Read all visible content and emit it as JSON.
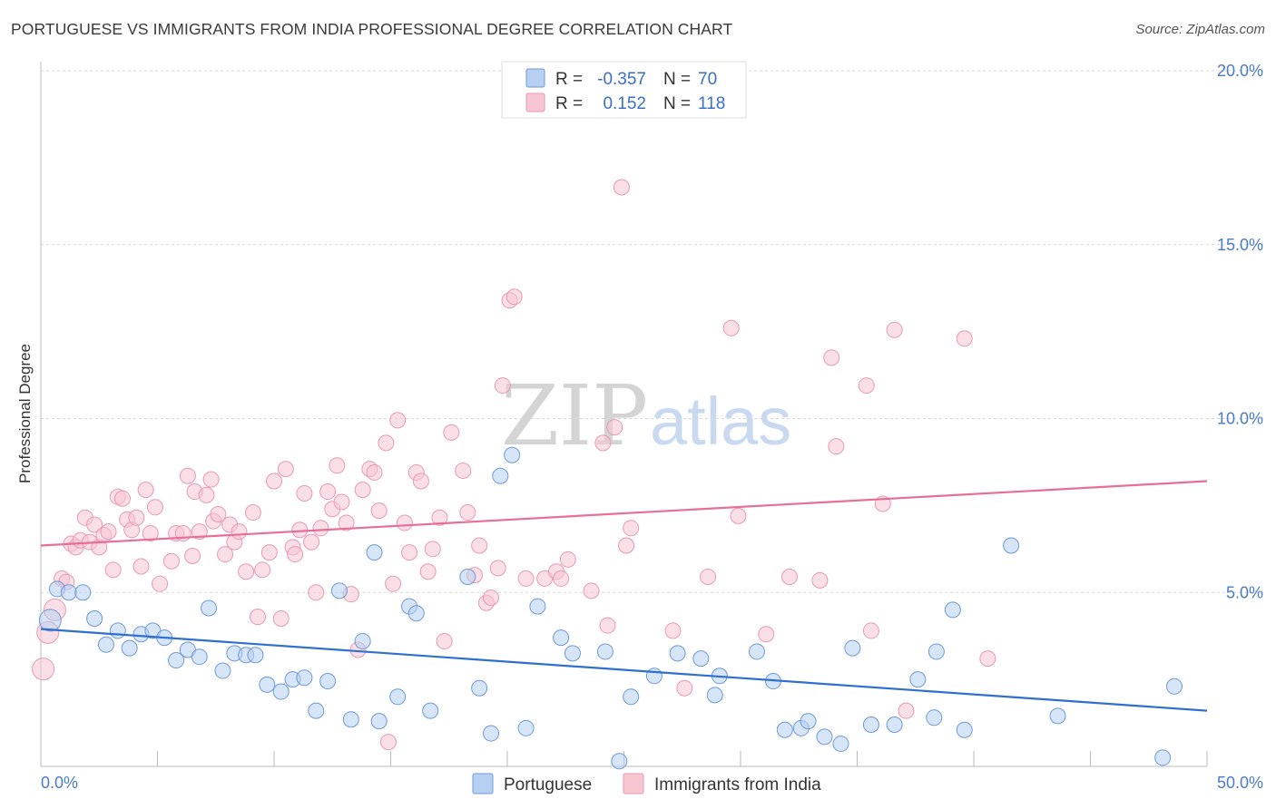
{
  "header": {
    "title": "PORTUGUESE VS IMMIGRANTS FROM INDIA PROFESSIONAL DEGREE CORRELATION CHART",
    "source": "Source: ZipAtlas.com"
  },
  "watermark": {
    "zip": "ZIP",
    "atlas": "atlas"
  },
  "legend": {
    "r_label": "R =",
    "n_label": "N =",
    "series1": {
      "r": "-0.357",
      "n": "70"
    },
    "series2": {
      "r": "0.152",
      "n": "118"
    }
  },
  "colors": {
    "portuguese_fill": "#b7d0f2",
    "portuguese_stroke": "#6f9ad8",
    "portuguese_line": "#2f6fcd",
    "india_fill": "#f8c5d3",
    "india_stroke": "#e89ab2",
    "india_line": "#e56f99",
    "axis_text": "#4a7cc7"
  },
  "chart_data": {
    "type": "scatter",
    "xlabel": "",
    "ylabel": "Professional Degree",
    "xlim": [
      0,
      50
    ],
    "ylim": [
      0,
      20
    ],
    "x_ticks": [
      "0.0%",
      "50.0%"
    ],
    "y_ticks": [
      {
        "value": 5,
        "label": "5.0%"
      },
      {
        "value": 10,
        "label": "10.0%"
      },
      {
        "value": 15,
        "label": "15.0%"
      },
      {
        "value": 20,
        "label": "20.0%"
      }
    ],
    "legend_position": "top-center",
    "grid": "horizontal-dashed",
    "series": [
      {
        "name": "Portuguese",
        "r": -0.357,
        "n": 70,
        "trend": [
          [
            0,
            3.95
          ],
          [
            50,
            1.6
          ]
        ],
        "points": [
          [
            0.4,
            4.2
          ],
          [
            0.7,
            5.1
          ],
          [
            1.2,
            5.0
          ],
          [
            1.8,
            5.0
          ],
          [
            2.3,
            4.25
          ],
          [
            2.8,
            3.5
          ],
          [
            3.3,
            3.9
          ],
          [
            3.8,
            3.4
          ],
          [
            4.3,
            3.8
          ],
          [
            4.8,
            3.9
          ],
          [
            5.3,
            3.7
          ],
          [
            5.8,
            3.05
          ],
          [
            6.3,
            3.35
          ],
          [
            6.8,
            3.15
          ],
          [
            7.2,
            4.55
          ],
          [
            7.8,
            2.75
          ],
          [
            8.3,
            3.25
          ],
          [
            8.8,
            3.2
          ],
          [
            9.2,
            3.2
          ],
          [
            9.7,
            2.35
          ],
          [
            10.3,
            2.15
          ],
          [
            10.8,
            2.5
          ],
          [
            11.3,
            2.55
          ],
          [
            11.8,
            1.6
          ],
          [
            12.3,
            2.45
          ],
          [
            12.8,
            5.05
          ],
          [
            13.3,
            1.35
          ],
          [
            13.8,
            3.6
          ],
          [
            14.3,
            6.15
          ],
          [
            14.5,
            1.3
          ],
          [
            15.3,
            2.0
          ],
          [
            15.8,
            4.6
          ],
          [
            16.1,
            4.4
          ],
          [
            16.7,
            1.6
          ],
          [
            18.3,
            5.45
          ],
          [
            18.8,
            2.25
          ],
          [
            19.3,
            0.95
          ],
          [
            19.7,
            8.35
          ],
          [
            20.2,
            8.95
          ],
          [
            20.8,
            1.1
          ],
          [
            21.3,
            4.6
          ],
          [
            22.3,
            3.7
          ],
          [
            22.8,
            3.25
          ],
          [
            24.2,
            3.3
          ],
          [
            24.8,
            0.15
          ],
          [
            25.3,
            2.0
          ],
          [
            26.3,
            2.6
          ],
          [
            27.3,
            3.25
          ],
          [
            28.3,
            3.1
          ],
          [
            28.9,
            2.05
          ],
          [
            29.1,
            2.6
          ],
          [
            30.7,
            3.3
          ],
          [
            31.4,
            2.45
          ],
          [
            31.9,
            1.05
          ],
          [
            32.6,
            1.1
          ],
          [
            32.9,
            1.3
          ],
          [
            33.6,
            0.85
          ],
          [
            34.3,
            0.65
          ],
          [
            34.8,
            3.4
          ],
          [
            35.6,
            1.2
          ],
          [
            36.6,
            1.2
          ],
          [
            37.6,
            2.5
          ],
          [
            38.3,
            1.4
          ],
          [
            38.4,
            3.3
          ],
          [
            39.1,
            4.5
          ],
          [
            39.6,
            1.05
          ],
          [
            41.6,
            6.35
          ],
          [
            43.6,
            1.45
          ],
          [
            48.1,
            0.25
          ],
          [
            48.6,
            2.3
          ]
        ]
      },
      {
        "name": "Immigrants from India",
        "r": 0.152,
        "n": 118,
        "trend": [
          [
            0,
            6.35
          ],
          [
            50,
            8.2
          ]
        ],
        "points": [
          [
            0.1,
            2.8
          ],
          [
            0.3,
            3.85
          ],
          [
            0.6,
            4.5
          ],
          [
            0.9,
            5.4
          ],
          [
            1.1,
            5.3
          ],
          [
            1.3,
            6.4
          ],
          [
            1.5,
            6.3
          ],
          [
            1.7,
            6.5
          ],
          [
            1.9,
            7.15
          ],
          [
            2.1,
            6.45
          ],
          [
            2.3,
            6.95
          ],
          [
            2.5,
            6.3
          ],
          [
            2.7,
            6.65
          ],
          [
            2.9,
            6.75
          ],
          [
            3.1,
            5.65
          ],
          [
            3.3,
            7.75
          ],
          [
            3.5,
            7.7
          ],
          [
            3.7,
            7.1
          ],
          [
            3.9,
            6.8
          ],
          [
            4.1,
            7.15
          ],
          [
            4.3,
            5.75
          ],
          [
            4.5,
            7.95
          ],
          [
            4.7,
            6.7
          ],
          [
            4.9,
            7.45
          ],
          [
            5.1,
            5.25
          ],
          [
            5.6,
            5.9
          ],
          [
            5.8,
            6.7
          ],
          [
            6.1,
            6.7
          ],
          [
            6.3,
            8.35
          ],
          [
            6.5,
            6.05
          ],
          [
            6.6,
            7.9
          ],
          [
            6.8,
            6.75
          ],
          [
            7.1,
            7.8
          ],
          [
            7.3,
            8.25
          ],
          [
            7.4,
            7.05
          ],
          [
            7.6,
            7.25
          ],
          [
            7.9,
            6.1
          ],
          [
            8.1,
            6.95
          ],
          [
            8.3,
            6.45
          ],
          [
            8.5,
            6.75
          ],
          [
            8.8,
            5.6
          ],
          [
            9.1,
            7.3
          ],
          [
            9.3,
            4.3
          ],
          [
            9.5,
            5.65
          ],
          [
            9.8,
            6.15
          ],
          [
            10.0,
            8.2
          ],
          [
            10.3,
            4.25
          ],
          [
            10.5,
            8.55
          ],
          [
            10.8,
            6.3
          ],
          [
            10.9,
            6.1
          ],
          [
            11.1,
            6.8
          ],
          [
            11.3,
            7.85
          ],
          [
            11.6,
            6.45
          ],
          [
            11.8,
            5.0
          ],
          [
            12.0,
            6.85
          ],
          [
            12.3,
            7.9
          ],
          [
            12.5,
            7.4
          ],
          [
            12.7,
            8.65
          ],
          [
            12.9,
            7.6
          ],
          [
            13.1,
            7.0
          ],
          [
            13.3,
            4.95
          ],
          [
            13.6,
            3.35
          ],
          [
            13.8,
            7.95
          ],
          [
            14.1,
            8.55
          ],
          [
            14.3,
            8.45
          ],
          [
            14.5,
            7.35
          ],
          [
            14.8,
            9.3
          ],
          [
            14.9,
            0.7
          ],
          [
            15.1,
            5.25
          ],
          [
            15.3,
            9.95
          ],
          [
            15.6,
            7.0
          ],
          [
            15.8,
            6.15
          ],
          [
            16.1,
            8.45
          ],
          [
            16.3,
            8.2
          ],
          [
            16.6,
            5.6
          ],
          [
            16.8,
            6.25
          ],
          [
            17.1,
            7.15
          ],
          [
            17.3,
            3.6
          ],
          [
            17.6,
            9.6
          ],
          [
            18.1,
            8.5
          ],
          [
            18.3,
            7.3
          ],
          [
            18.6,
            5.5
          ],
          [
            18.8,
            6.35
          ],
          [
            19.1,
            4.7
          ],
          [
            19.3,
            4.85
          ],
          [
            19.6,
            5.7
          ],
          [
            19.8,
            10.95
          ],
          [
            20.1,
            13.4
          ],
          [
            20.3,
            13.5
          ],
          [
            20.8,
            5.4
          ],
          [
            21.6,
            5.4
          ],
          [
            22.1,
            5.6
          ],
          [
            22.3,
            5.4
          ],
          [
            22.6,
            5.95
          ],
          [
            23.6,
            5.05
          ],
          [
            24.1,
            9.3
          ],
          [
            24.3,
            4.05
          ],
          [
            24.6,
            9.75
          ],
          [
            24.9,
            16.65
          ],
          [
            25.1,
            6.35
          ],
          [
            25.3,
            6.85
          ],
          [
            27.1,
            3.9
          ],
          [
            27.6,
            2.25
          ],
          [
            28.6,
            5.45
          ],
          [
            29.6,
            12.6
          ],
          [
            29.9,
            7.2
          ],
          [
            31.1,
            3.8
          ],
          [
            32.1,
            5.45
          ],
          [
            33.4,
            5.35
          ],
          [
            33.9,
            11.75
          ],
          [
            34.1,
            9.2
          ],
          [
            35.4,
            10.95
          ],
          [
            35.6,
            3.9
          ],
          [
            36.1,
            7.55
          ],
          [
            36.6,
            12.55
          ],
          [
            37.1,
            1.6
          ],
          [
            39.6,
            12.3
          ],
          [
            40.6,
            3.1
          ]
        ]
      }
    ]
  },
  "bottom_legend": {
    "items": [
      "Portuguese",
      "Immigrants from India"
    ]
  }
}
